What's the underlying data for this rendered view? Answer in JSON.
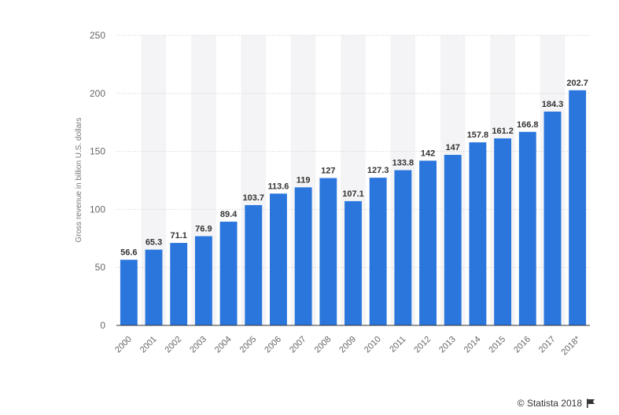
{
  "chart_data": {
    "type": "bar",
    "categories": [
      "2000",
      "2001",
      "2002",
      "2003",
      "2004",
      "2005",
      "2006",
      "2007",
      "2008",
      "2009",
      "2010",
      "2011",
      "2012",
      "2013",
      "2014",
      "2015",
      "2016",
      "2017",
      "2018*"
    ],
    "values": [
      56.6,
      65.3,
      71.1,
      76.9,
      89.4,
      103.7,
      113.6,
      119,
      127,
      107.1,
      127.3,
      133.8,
      142,
      147,
      157.8,
      161.2,
      166.8,
      184.3,
      202.7
    ],
    "value_labels": [
      "56.6",
      "65.3",
      "71.1",
      "76.9",
      "89.4",
      "103.7",
      "113.6",
      "119",
      "127",
      "107.1",
      "127.3",
      "133.8",
      "142",
      "147",
      "157.8",
      "161.2",
      "166.8",
      "184.3",
      "202.7"
    ],
    "ylabel": "Gross revenue in billion U.S. dollars",
    "ylim": [
      0,
      250
    ],
    "yticks": [
      0,
      50,
      100,
      150,
      200,
      250
    ],
    "ytick_labels": [
      "0",
      "50",
      "100",
      "150",
      "200",
      "250"
    ],
    "grid": true,
    "bar_color": "#2a76dd",
    "band_color": "#f4f4f6"
  },
  "credit": {
    "text": "© Statista 2018",
    "icon": "flag-icon"
  }
}
